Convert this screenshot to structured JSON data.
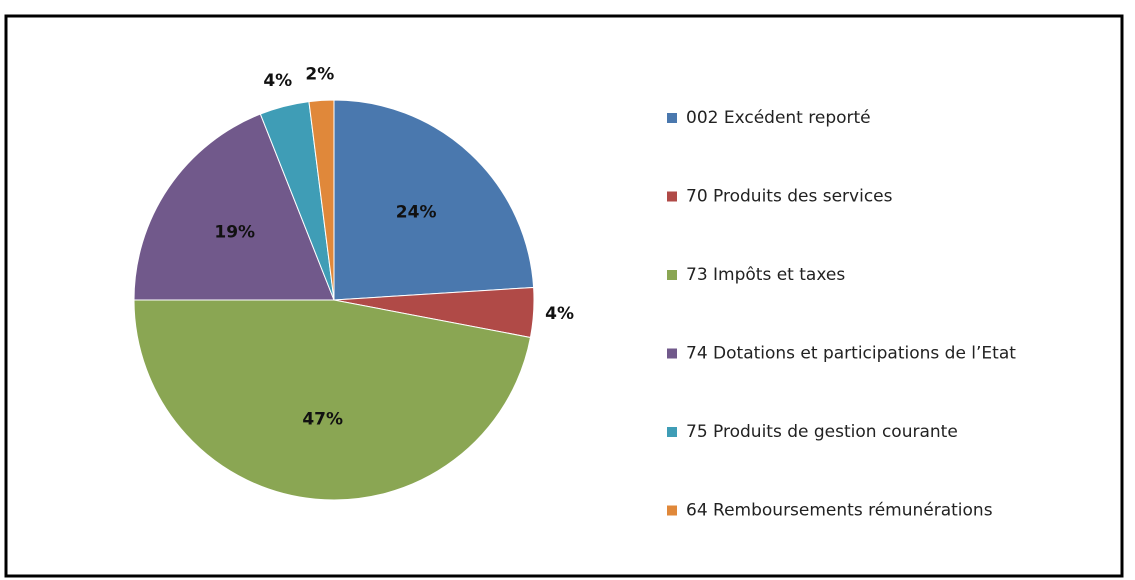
{
  "chart_data": {
    "type": "pie",
    "categories": [
      "002 Excédent reporté",
      "70 Produits des services",
      "73 Impôts et taxes",
      "74 Dotations et participations de l’Etat",
      "75 Produits de gestion courante",
      "64 Remboursements rémunérations"
    ],
    "values": [
      24,
      4,
      47,
      19,
      4,
      2
    ],
    "value_labels": [
      "24%",
      "4%",
      "47%",
      "19%",
      "4%",
      "2%"
    ],
    "colors": [
      "#4a78ae",
      "#b04a47",
      "#8aa653",
      "#71598b",
      "#3f9db6",
      "#e0883a"
    ],
    "legend": "right"
  }
}
